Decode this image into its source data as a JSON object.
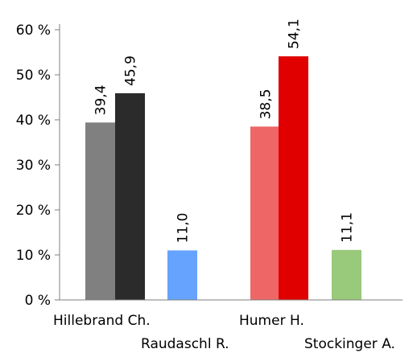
{
  "chart_data": {
    "type": "bar",
    "title": "",
    "xlabel": "",
    "ylabel": "",
    "ylim": [
      0,
      60
    ],
    "y_ticks": [
      {
        "value": 0,
        "label": "0 %"
      },
      {
        "value": 10,
        "label": "10 %"
      },
      {
        "value": 20,
        "label": "20 %"
      },
      {
        "value": 30,
        "label": "30 %"
      },
      {
        "value": 40,
        "label": "40 %"
      },
      {
        "value": 50,
        "label": "50 %"
      },
      {
        "value": 60,
        "label": "60 %"
      }
    ],
    "grid": false,
    "legend": "none",
    "categories": [
      "Hillebrand Ch.",
      "Raudaschl R.",
      "Humer H.",
      "Stockinger A."
    ],
    "bars": [
      {
        "category": "Hillebrand Ch.",
        "value": 39.4,
        "label": "39,4",
        "color": "#808080"
      },
      {
        "category": "Hillebrand Ch.",
        "value": 45.9,
        "label": "45,9",
        "color": "#2b2b2b"
      },
      {
        "category": "Raudaschl R.",
        "value": 11.0,
        "label": "11,0",
        "color": "#66a3ff"
      },
      {
        "category": "Humer H.",
        "value": 38.5,
        "label": "38,5",
        "color": "#ee6666"
      },
      {
        "category": "Humer H.",
        "value": 54.1,
        "label": "54,1",
        "color": "#e00000"
      },
      {
        "category": "Stockinger A.",
        "value": 11.1,
        "label": "11,1",
        "color": "#99c97a"
      }
    ]
  }
}
